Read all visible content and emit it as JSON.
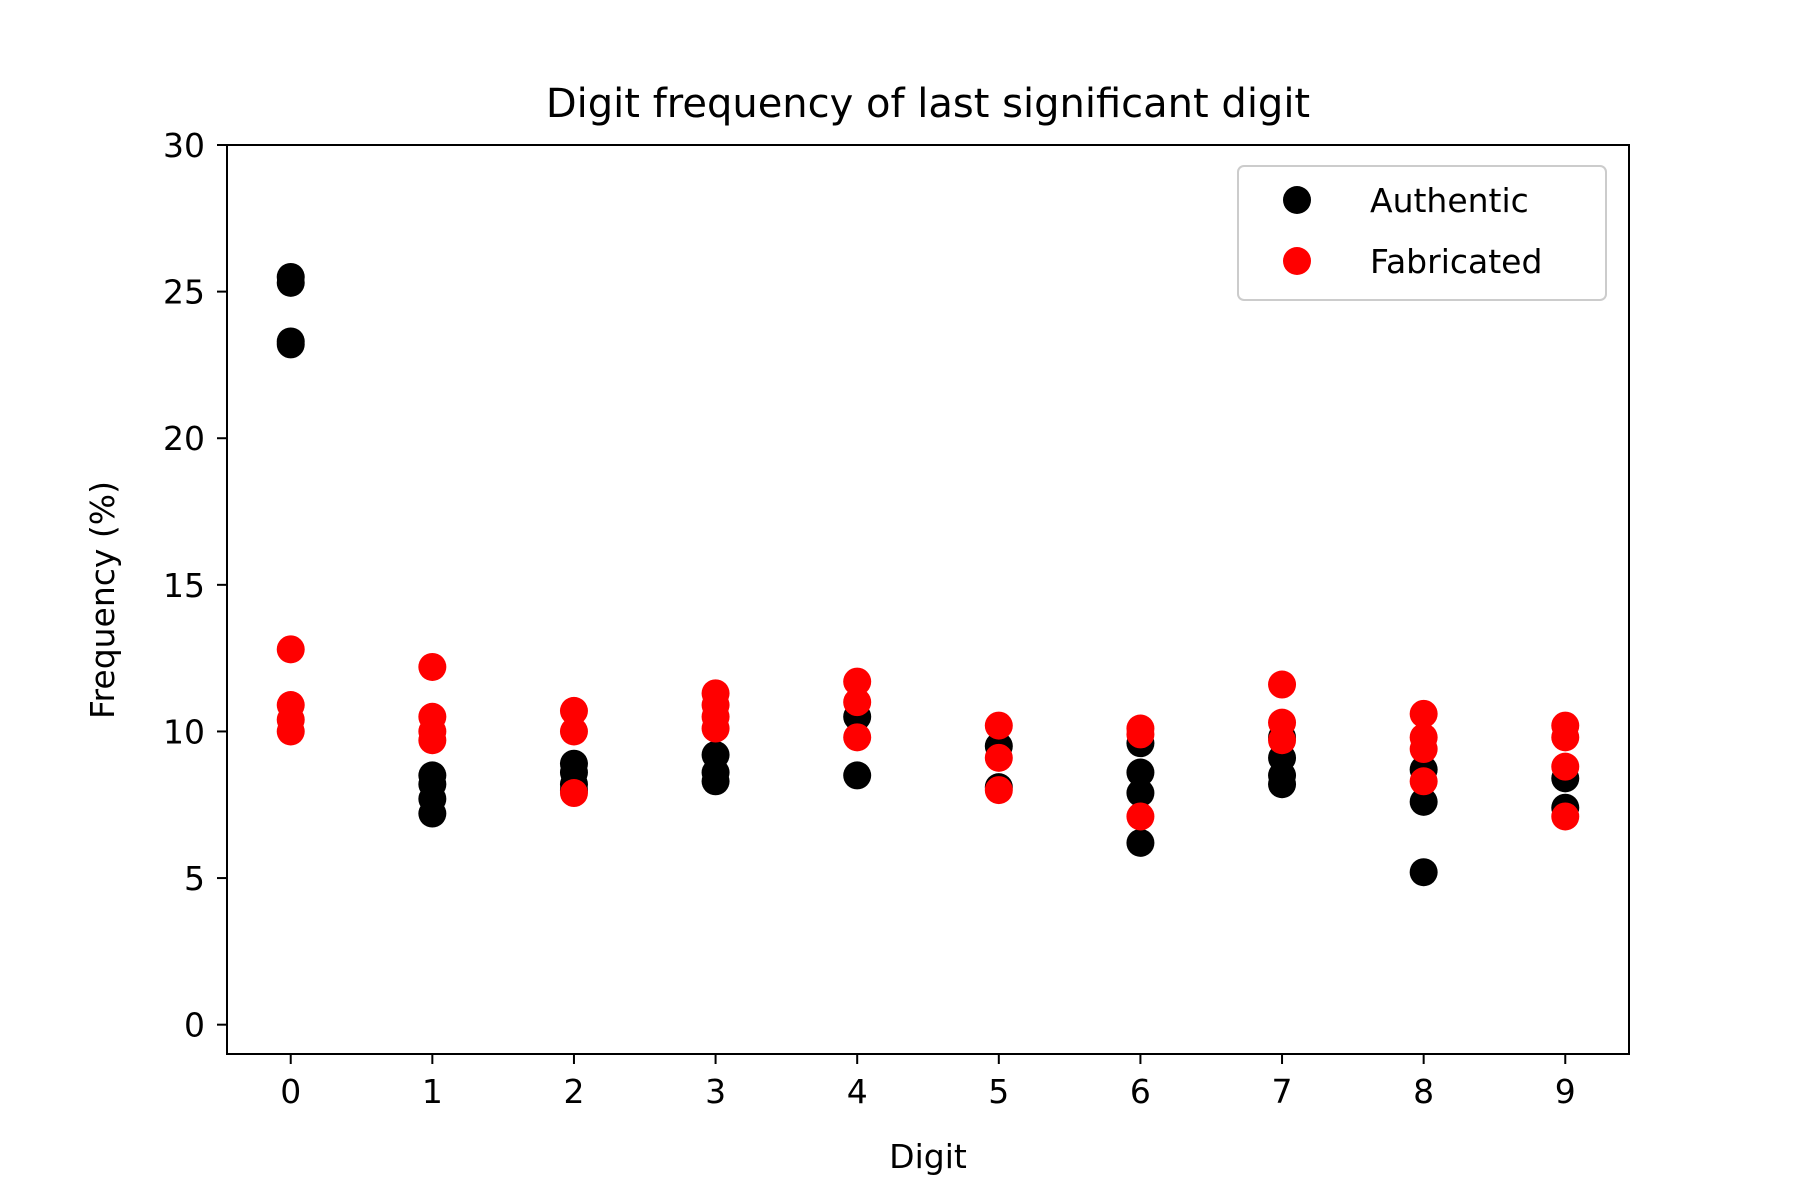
{
  "chart_data": {
    "type": "scatter",
    "title": "Digit frequency of last significant digit",
    "xlabel": "Digit",
    "ylabel": "Frequency (%)",
    "xlim": [
      -0.45,
      9.45
    ],
    "ylim": [
      -1,
      30
    ],
    "xticks": [
      "0",
      "1",
      "2",
      "3",
      "4",
      "5",
      "6",
      "7",
      "8",
      "9"
    ],
    "yticks": [
      "0",
      "5",
      "10",
      "15",
      "20",
      "25",
      "30"
    ],
    "grid": false,
    "legend_position": "top-right",
    "series": [
      {
        "name": "Authentic",
        "color": "#000000",
        "points": [
          [
            0,
            25.5
          ],
          [
            0,
            25.3
          ],
          [
            0,
            23.3
          ],
          [
            0,
            23.2
          ],
          [
            1,
            8.5
          ],
          [
            1,
            8.2
          ],
          [
            1,
            7.7
          ],
          [
            1,
            7.2
          ],
          [
            2,
            8.9
          ],
          [
            2,
            8.6
          ],
          [
            2,
            8.2
          ],
          [
            2,
            8.0
          ],
          [
            3,
            9.2
          ],
          [
            3,
            8.6
          ],
          [
            3,
            8.3
          ],
          [
            4,
            10.5
          ],
          [
            4,
            8.5
          ],
          [
            5,
            9.5
          ],
          [
            5,
            8.1
          ],
          [
            6,
            9.6
          ],
          [
            6,
            8.6
          ],
          [
            6,
            7.9
          ],
          [
            6,
            6.2
          ],
          [
            7,
            9.8
          ],
          [
            7,
            9.1
          ],
          [
            7,
            8.5
          ],
          [
            7,
            8.2
          ],
          [
            8,
            8.7
          ],
          [
            8,
            7.6
          ],
          [
            8,
            5.2
          ],
          [
            9,
            8.4
          ],
          [
            9,
            7.4
          ]
        ]
      },
      {
        "name": "Fabricated",
        "color": "#ff0000",
        "points": [
          [
            0,
            12.8
          ],
          [
            0,
            10.9
          ],
          [
            0,
            10.4
          ],
          [
            0,
            10.0
          ],
          [
            1,
            12.2
          ],
          [
            1,
            10.5
          ],
          [
            1,
            10.0
          ],
          [
            1,
            9.7
          ],
          [
            2,
            10.7
          ],
          [
            2,
            10.0
          ],
          [
            2,
            7.9
          ],
          [
            3,
            11.3
          ],
          [
            3,
            10.9
          ],
          [
            3,
            10.5
          ],
          [
            3,
            10.1
          ],
          [
            4,
            11.7
          ],
          [
            4,
            11.0
          ],
          [
            4,
            9.8
          ],
          [
            5,
            10.2
          ],
          [
            5,
            9.1
          ],
          [
            5,
            8.0
          ],
          [
            6,
            10.1
          ],
          [
            6,
            9.9
          ],
          [
            6,
            7.1
          ],
          [
            7,
            11.6
          ],
          [
            7,
            10.3
          ],
          [
            7,
            9.7
          ],
          [
            8,
            10.6
          ],
          [
            8,
            9.8
          ],
          [
            8,
            9.4
          ],
          [
            8,
            8.3
          ],
          [
            9,
            10.2
          ],
          [
            9,
            9.8
          ],
          [
            9,
            8.8
          ],
          [
            9,
            7.1
          ]
        ]
      }
    ]
  }
}
